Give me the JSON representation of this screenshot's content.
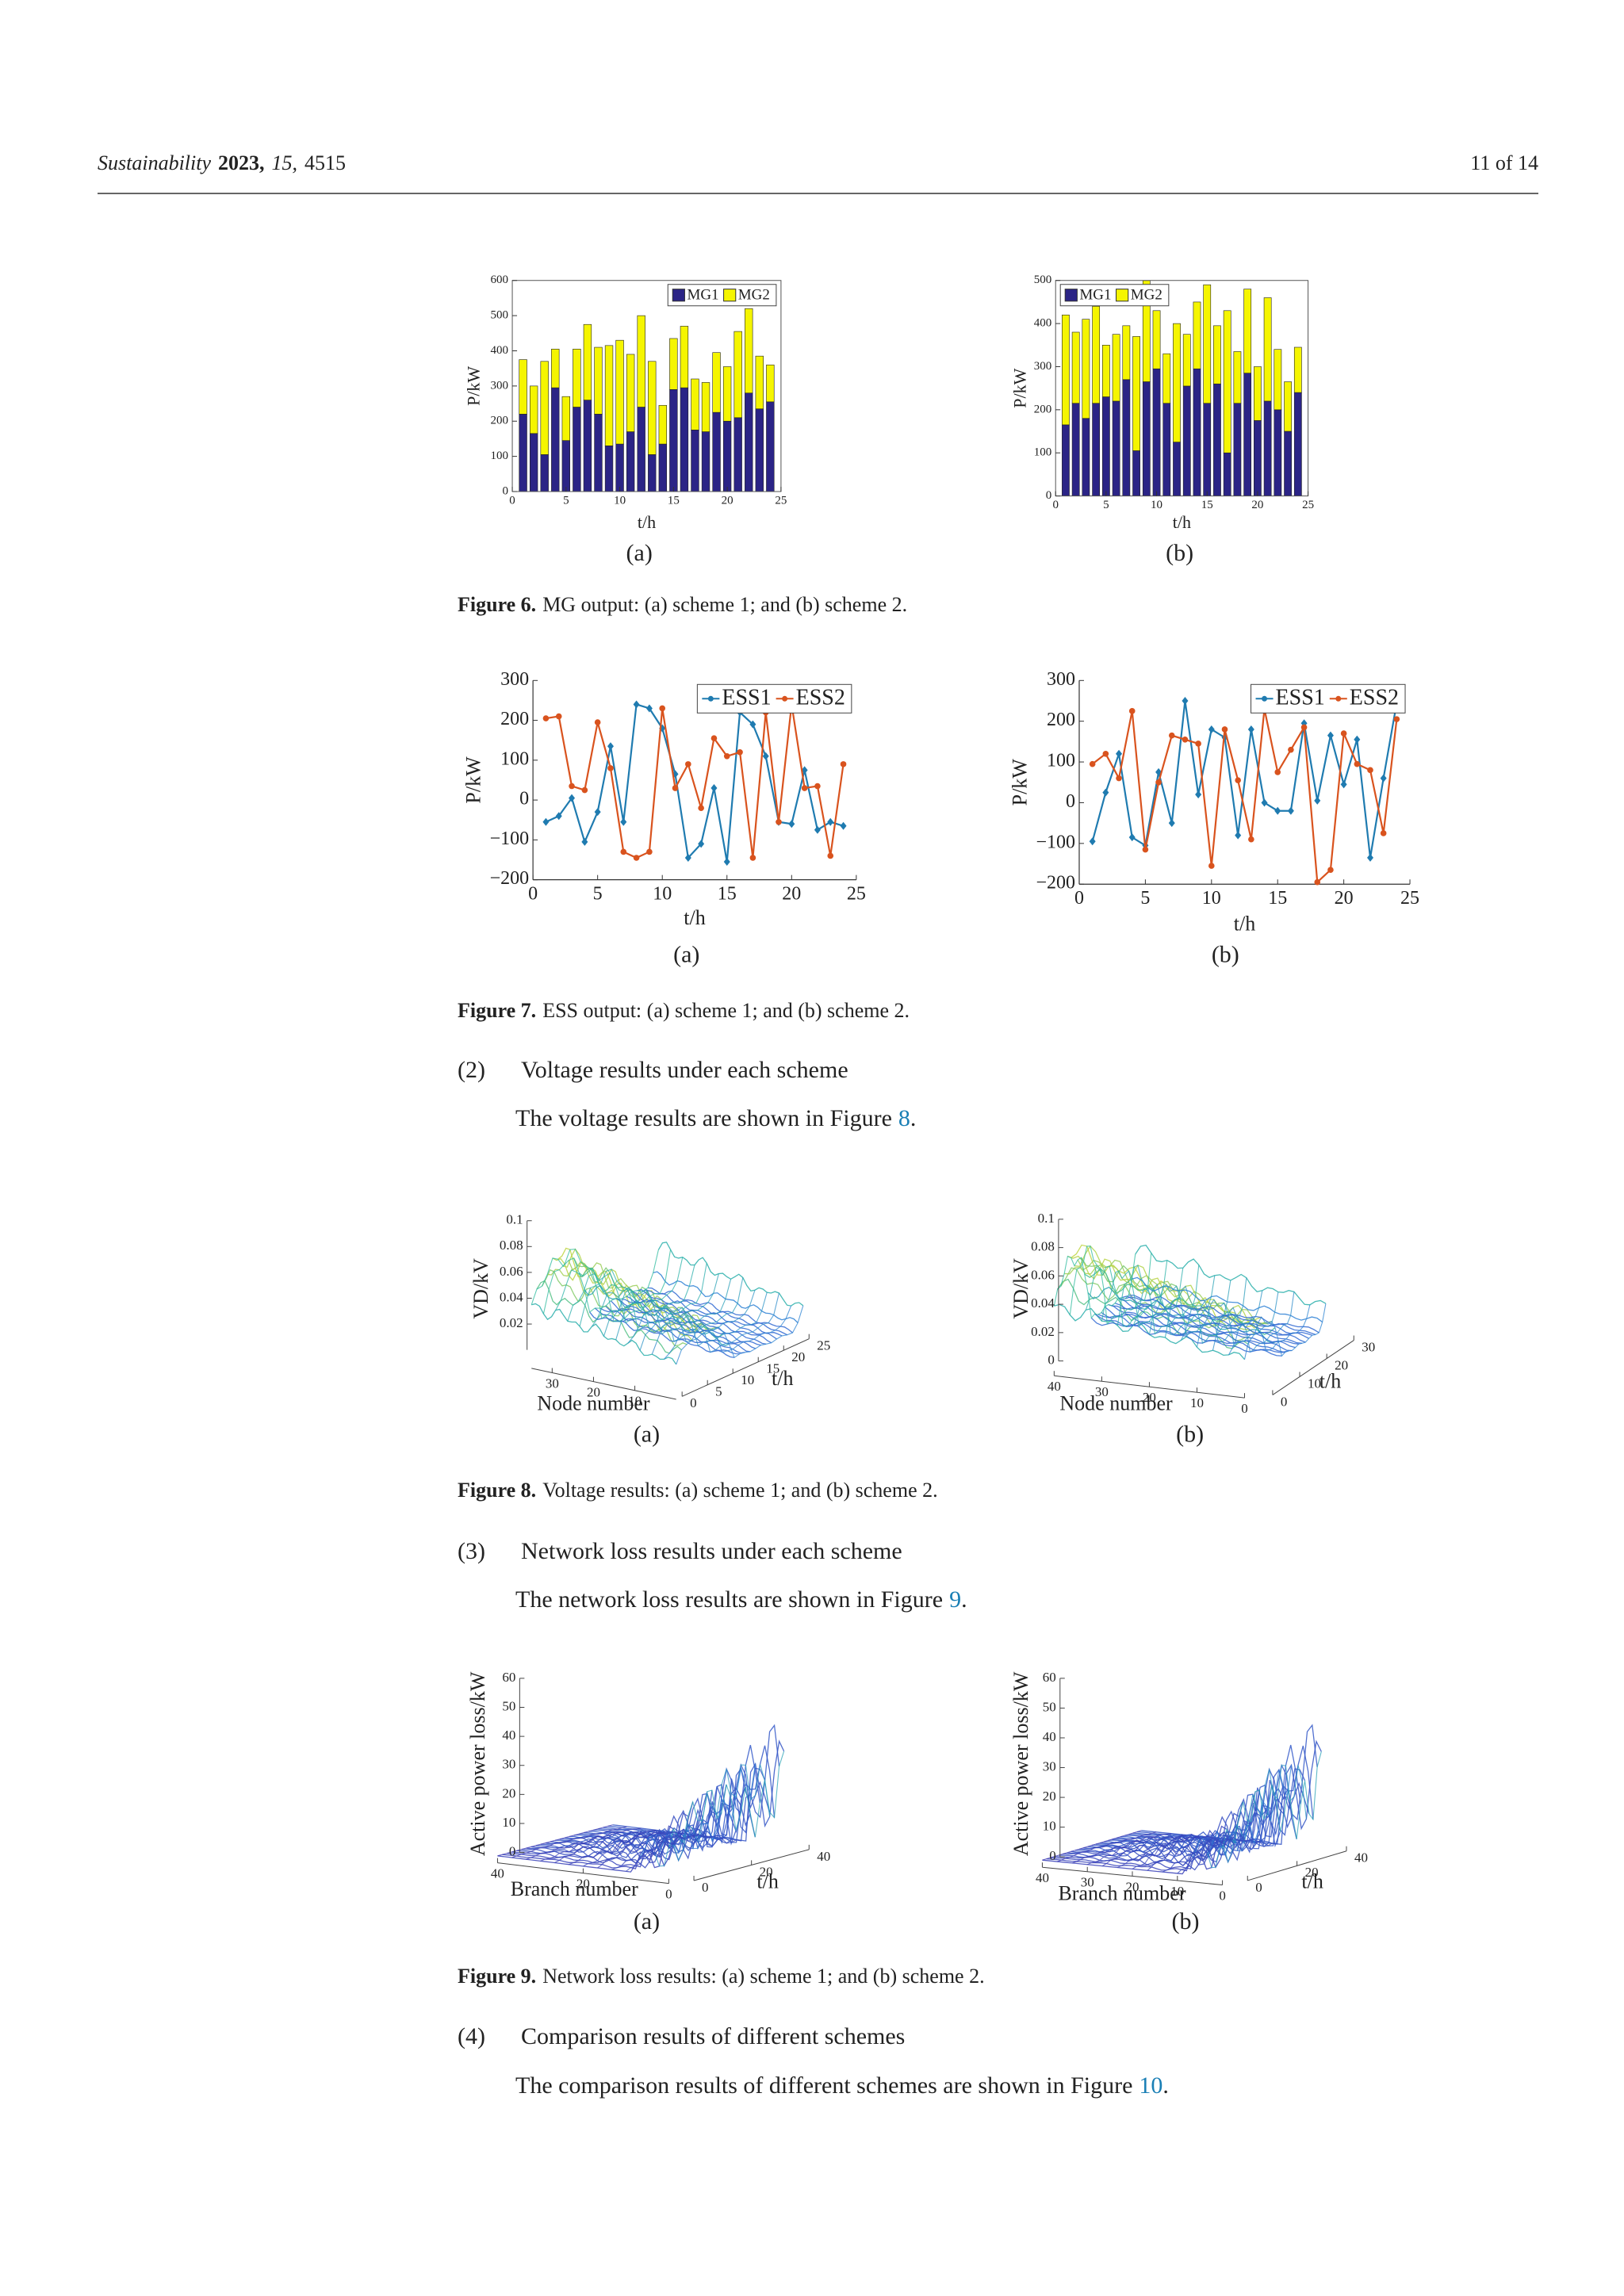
{
  "header": {
    "journal": "Sustainability",
    "year": "2023,",
    "volume": "15,",
    "article": "4515",
    "page": "11 of 14"
  },
  "captions": [
    {
      "label": "Figure 6.",
      "text": "MG output: (a) scheme 1; and (b) scheme 2."
    },
    {
      "label": "Figure 7.",
      "text": "ESS output: (a) scheme 1; and (b) scheme 2."
    },
    {
      "label": "Figure 8.",
      "text": "Voltage results: (a) scheme 1; and (b) scheme 2."
    },
    {
      "label": "Figure 9.",
      "text": "Network loss results: (a) scheme 1; and (b) scheme 2."
    }
  ],
  "sections": [
    {
      "number": "(2)",
      "heading": "Voltage results under each scheme",
      "text": "The voltage results are shown in Figure",
      "ref": "8",
      "end": "."
    },
    {
      "number": "(3)",
      "heading": "Network loss results under each scheme",
      "text": "The network loss results are shown in Figure",
      "ref": "9",
      "end": "."
    },
    {
      "number": "(4)",
      "heading": "Comparison results of different schemes",
      "text": "The comparison results of different schemes are shown in Figure",
      "ref": "10",
      "end": "."
    }
  ],
  "chart_data": [
    {
      "type": "bar",
      "stacked": true,
      "panel": "(a)",
      "xlabel": "t/h",
      "ylabel": "P/kW",
      "x": [
        1,
        2,
        3,
        4,
        5,
        6,
        7,
        8,
        9,
        10,
        11,
        12,
        13,
        14,
        15,
        16,
        17,
        18,
        19,
        20,
        21,
        22,
        23,
        24
      ],
      "series": [
        {
          "name": "MG1",
          "color": "#2b2486",
          "values": [
            220,
            165,
            105,
            295,
            145,
            240,
            260,
            220,
            130,
            135,
            170,
            240,
            105,
            135,
            290,
            295,
            175,
            170,
            225,
            200,
            210,
            280,
            235,
            255
          ]
        },
        {
          "name": "MG2",
          "color": "#f5f500",
          "values": [
            155,
            135,
            265,
            110,
            125,
            165,
            215,
            190,
            285,
            295,
            220,
            260,
            265,
            110,
            145,
            175,
            145,
            140,
            170,
            155,
            245,
            240,
            150,
            105
          ]
        }
      ],
      "xlim": [
        0,
        25
      ],
      "xticks": [
        0,
        5,
        10,
        15,
        20,
        25
      ],
      "ylim": [
        0,
        600
      ],
      "yticks": [
        0,
        100,
        200,
        300,
        400,
        500,
        600
      ],
      "legend": "upper right"
    },
    {
      "type": "bar",
      "stacked": true,
      "panel": "(b)",
      "xlabel": "t/h",
      "ylabel": "P/kW",
      "x": [
        1,
        2,
        3,
        4,
        5,
        6,
        7,
        8,
        9,
        10,
        11,
        12,
        13,
        14,
        15,
        16,
        17,
        18,
        19,
        20,
        21,
        22,
        23,
        24
      ],
      "series": [
        {
          "name": "MG1",
          "color": "#2b2486",
          "values": [
            165,
            215,
            180,
            215,
            230,
            220,
            270,
            105,
            265,
            295,
            215,
            125,
            255,
            295,
            215,
            260,
            100,
            215,
            285,
            175,
            220,
            200,
            150,
            240
          ]
        },
        {
          "name": "MG2",
          "color": "#f5f500",
          "values": [
            255,
            165,
            230,
            225,
            120,
            155,
            125,
            265,
            235,
            135,
            115,
            275,
            120,
            155,
            275,
            135,
            330,
            120,
            195,
            125,
            240,
            140,
            115,
            105
          ]
        }
      ],
      "xlim": [
        0,
        25
      ],
      "xticks": [
        0,
        5,
        10,
        15,
        20,
        25
      ],
      "ylim": [
        0,
        500
      ],
      "yticks": [
        0,
        100,
        200,
        300,
        400,
        500
      ],
      "legend": "upper left"
    },
    {
      "type": "line",
      "panel": "(a)",
      "xlabel": "t/h",
      "ylabel": "P/kW",
      "x": [
        1,
        2,
        3,
        4,
        5,
        6,
        7,
        8,
        9,
        10,
        11,
        12,
        13,
        14,
        15,
        16,
        17,
        18,
        19,
        20,
        21,
        22,
        23,
        24
      ],
      "series": [
        {
          "name": "ESS1",
          "color": "#1f7bb0",
          "marker": "diamond",
          "values": [
            -55,
            -40,
            5,
            -105,
            -30,
            135,
            -55,
            240,
            230,
            180,
            65,
            -145,
            -110,
            30,
            -155,
            220,
            190,
            110,
            -55,
            -60,
            75,
            -75,
            -55,
            -65
          ]
        },
        {
          "name": "ESS2",
          "color": "#d9531e",
          "marker": "circle",
          "values": [
            205,
            210,
            35,
            25,
            195,
            80,
            -130,
            -145,
            -130,
            230,
            30,
            90,
            -20,
            155,
            110,
            120,
            -145,
            220,
            -55,
            240,
            30,
            35,
            -140,
            90
          ]
        }
      ],
      "xlim": [
        0,
        25
      ],
      "xticks": [
        0,
        5,
        10,
        15,
        20,
        25
      ],
      "ylim": [
        -200,
        300
      ],
      "yticks": [
        {
          "value": -200,
          "label": "−200"
        },
        {
          "value": -100,
          "label": "−100"
        },
        0,
        100,
        200,
        300
      ],
      "legend": "upper right"
    },
    {
      "type": "line",
      "panel": "(b)",
      "xlabel": "t/h",
      "ylabel": "P/kW",
      "x": [
        1,
        2,
        3,
        4,
        5,
        6,
        7,
        8,
        9,
        10,
        11,
        12,
        13,
        14,
        15,
        16,
        17,
        18,
        19,
        20,
        21,
        22,
        23,
        24
      ],
      "series": [
        {
          "name": "ESS1",
          "color": "#1f7bb0",
          "marker": "diamond",
          "values": [
            -95,
            25,
            120,
            -85,
            -105,
            75,
            -50,
            250,
            20,
            180,
            160,
            -80,
            180,
            0,
            -20,
            -20,
            195,
            5,
            165,
            45,
            155,
            -135,
            60,
            245
          ]
        },
        {
          "name": "ESS2",
          "color": "#d9531e",
          "marker": "circle",
          "values": [
            95,
            120,
            60,
            225,
            -115,
            50,
            165,
            155,
            145,
            -155,
            180,
            55,
            -90,
            230,
            75,
            130,
            185,
            -195,
            -165,
            170,
            95,
            80,
            -75,
            205
          ]
        }
      ],
      "xlim": [
        0,
        25
      ],
      "xticks": [
        0,
        5,
        10,
        15,
        20,
        25
      ],
      "ylim": [
        -200,
        300
      ],
      "yticks": [
        {
          "value": -200,
          "label": "−200"
        },
        {
          "value": -100,
          "label": "−100"
        },
        0,
        100,
        200,
        300
      ],
      "legend": "upper right"
    },
    {
      "type": "surface3d",
      "panel": "(a)",
      "xlabel": "Node number",
      "ylabel": "t/h",
      "zlabel": "VD/kV",
      "xlim": [
        0,
        35
      ],
      "xticks": [
        10,
        20,
        30
      ],
      "ylim": [
        0,
        25
      ],
      "yticks": [
        0,
        5,
        10,
        15,
        20,
        25
      ],
      "zlim": [
        0,
        0.1
      ],
      "zticks": [
        0.02,
        0.04,
        0.06,
        0.08,
        0.1
      ]
    },
    {
      "type": "surface3d",
      "panel": "(b)",
      "xlabel": "Node number",
      "ylabel": "t/h",
      "zlabel": "VD/kV",
      "xlim": [
        0,
        40
      ],
      "xticks": [
        0,
        10,
        20,
        30,
        40
      ],
      "ylim": [
        0,
        30
      ],
      "yticks": [
        0,
        10,
        20,
        30
      ],
      "zlim": [
        0,
        0.1
      ],
      "zticks": [
        0,
        0.02,
        0.04,
        0.06,
        0.08,
        0.1
      ]
    },
    {
      "type": "surface3d",
      "panel": "(a)",
      "xlabel": "Branch number",
      "ylabel": "t/h",
      "zlabel": "Active power loss/kW",
      "xlim": [
        0,
        40
      ],
      "xticks": [
        0,
        20,
        40
      ],
      "ylim": [
        0,
        40
      ],
      "yticks": [
        0,
        20,
        40
      ],
      "zlim": [
        0,
        60
      ],
      "zticks": [
        0,
        10,
        20,
        30,
        40,
        50,
        60
      ]
    },
    {
      "type": "surface3d",
      "panel": "(b)",
      "xlabel": "Branch number",
      "ylabel": "t/h",
      "zlabel": "Active power loss/kW",
      "xlim": [
        0,
        40
      ],
      "xticks": [
        0,
        10,
        20,
        30,
        40
      ],
      "ylim": [
        0,
        40
      ],
      "yticks": [
        0,
        20,
        40
      ],
      "zlim": [
        0,
        60
      ],
      "zticks": [
        0,
        10,
        20,
        30,
        40,
        50,
        60
      ]
    }
  ]
}
